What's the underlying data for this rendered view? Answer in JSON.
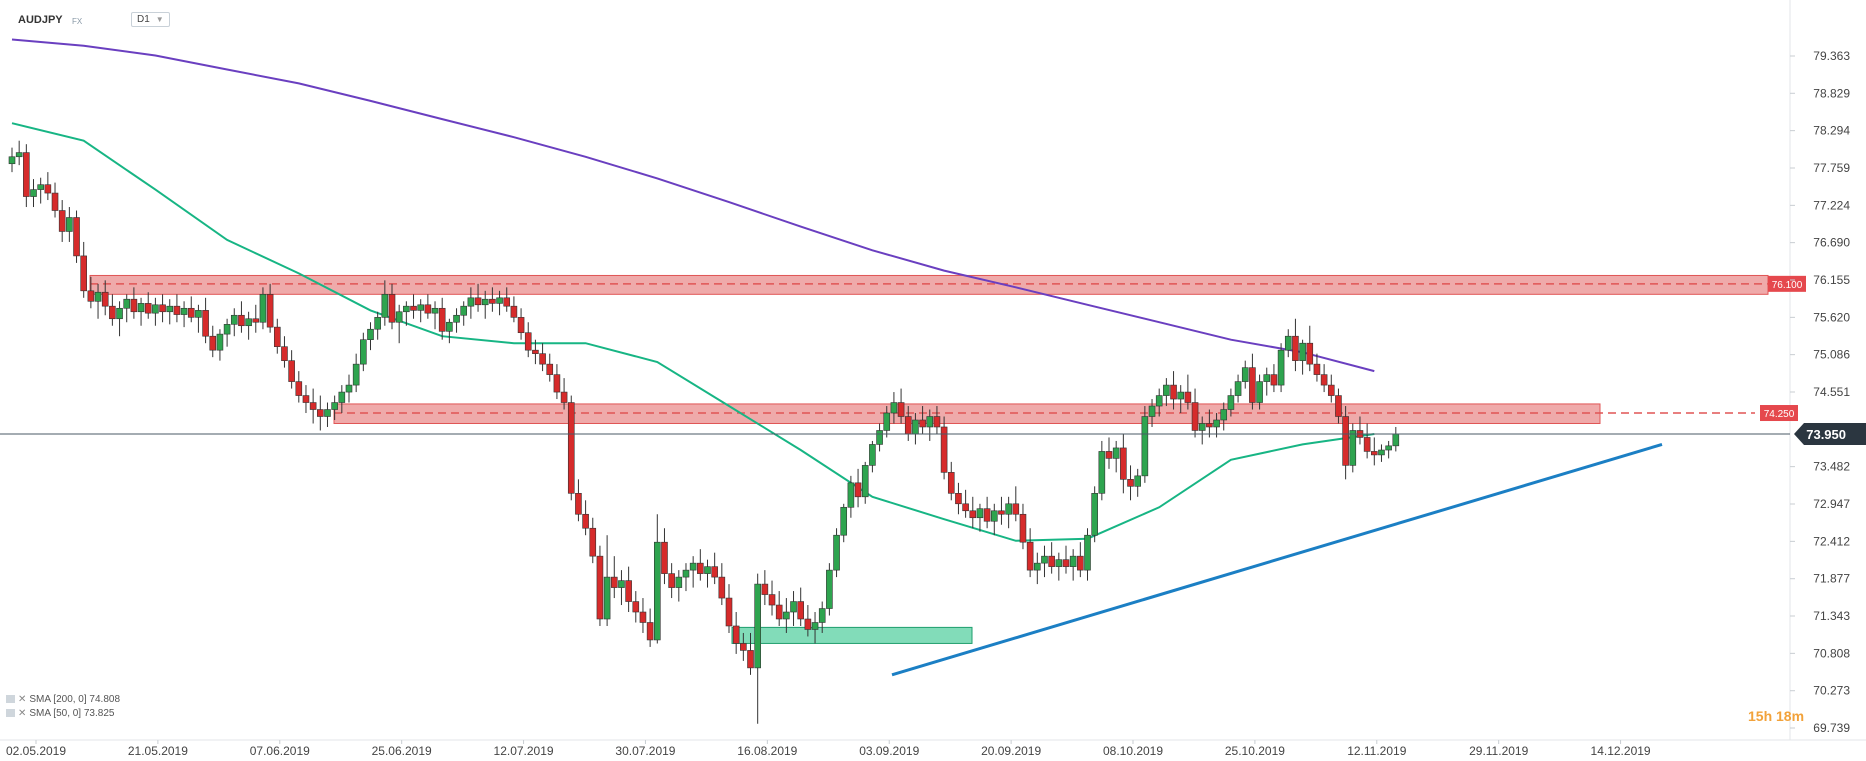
{
  "header": {
    "symbol": "AUDJPY",
    "market": "FX",
    "timeframe": "D1"
  },
  "indicators": [
    {
      "label": "SMA [200, 0] 74.808",
      "color": "#6a3fc0"
    },
    {
      "label": "SMA [50, 0] 73.825",
      "color": "#17b584"
    }
  ],
  "countdown": "15h 18m",
  "chart_data": {
    "type": "candlestick",
    "y_axis_ticks": [
      "79.363",
      "78.829",
      "78.294",
      "77.759",
      "77.224",
      "76.690",
      "76.155",
      "75.620",
      "75.086",
      "74.551",
      "73.482",
      "72.947",
      "72.412",
      "71.877",
      "71.343",
      "70.808",
      "70.273",
      "69.739"
    ],
    "ylim": [
      69.739,
      79.363
    ],
    "x_axis_ticks": [
      "02.05.2019",
      "21.05.2019",
      "07.06.2019",
      "25.06.2019",
      "12.07.2019",
      "30.07.2019",
      "16.08.2019",
      "03.09.2019",
      "20.09.2019",
      "08.10.2019",
      "25.10.2019",
      "12.11.2019",
      "29.11.2019",
      "14.12.2019"
    ],
    "current_price": {
      "value": 73.95,
      "label": "73.950"
    },
    "resistance_zones": [
      {
        "low": 75.95,
        "high": 76.22,
        "level": 76.1,
        "label": "76.100",
        "color": "#e05555"
      },
      {
        "low": 74.1,
        "high": 74.38,
        "level": 74.25,
        "label": "74.250",
        "color": "#e05555"
      }
    ],
    "support_zone": {
      "low": 70.95,
      "high": 71.18,
      "color": "#2fc48a"
    },
    "trendline": {
      "from": {
        "date": "21.08.2019",
        "price": 70.5
      },
      "to": {
        "date": "02.12.2019",
        "price": 73.8
      },
      "color": "#1b7fc4"
    },
    "sma200": [
      [
        0,
        79.6
      ],
      [
        10,
        79.51
      ],
      [
        20,
        79.37
      ],
      [
        30,
        79.17
      ],
      [
        40,
        78.97
      ],
      [
        50,
        78.72
      ],
      [
        60,
        78.46
      ],
      [
        70,
        78.2
      ],
      [
        80,
        77.92
      ],
      [
        90,
        77.61
      ],
      [
        100,
        77.27
      ],
      [
        110,
        76.92
      ],
      [
        120,
        76.58
      ],
      [
        130,
        76.29
      ],
      [
        140,
        76.05
      ],
      [
        150,
        75.8
      ],
      [
        160,
        75.55
      ],
      [
        170,
        75.3
      ],
      [
        180,
        75.12
      ],
      [
        190,
        74.85
      ]
    ],
    "sma50": [
      [
        0,
        78.4
      ],
      [
        10,
        78.15
      ],
      [
        20,
        77.45
      ],
      [
        30,
        76.73
      ],
      [
        40,
        76.25
      ],
      [
        50,
        75.72
      ],
      [
        60,
        75.35
      ],
      [
        70,
        75.25
      ],
      [
        80,
        75.25
      ],
      [
        90,
        74.98
      ],
      [
        100,
        74.35
      ],
      [
        110,
        73.72
      ],
      [
        120,
        73.05
      ],
      [
        130,
        72.73
      ],
      [
        140,
        72.42
      ],
      [
        150,
        72.45
      ],
      [
        160,
        72.9
      ],
      [
        170,
        73.58
      ],
      [
        180,
        73.8
      ],
      [
        190,
        73.95
      ]
    ],
    "candles": [
      [
        77.82,
        78.05,
        77.7,
        77.92
      ],
      [
        77.92,
        78.15,
        77.8,
        77.98
      ],
      [
        77.98,
        78.1,
        77.2,
        77.35
      ],
      [
        77.35,
        77.6,
        77.2,
        77.45
      ],
      [
        77.45,
        77.62,
        77.25,
        77.52
      ],
      [
        77.52,
        77.7,
        77.3,
        77.4
      ],
      [
        77.4,
        77.55,
        77.05,
        77.15
      ],
      [
        77.15,
        77.3,
        76.7,
        76.85
      ],
      [
        76.85,
        77.2,
        76.7,
        77.05
      ],
      [
        77.05,
        77.15,
        76.4,
        76.5
      ],
      [
        76.5,
        76.7,
        75.9,
        76.0
      ],
      [
        76.0,
        76.2,
        75.75,
        75.85
      ],
      [
        75.85,
        76.1,
        75.6,
        75.98
      ],
      [
        75.98,
        76.15,
        75.65,
        75.78
      ],
      [
        75.78,
        75.95,
        75.5,
        75.6
      ],
      [
        75.6,
        75.85,
        75.35,
        75.75
      ],
      [
        75.75,
        75.95,
        75.55,
        75.88
      ],
      [
        75.88,
        76.05,
        75.6,
        75.7
      ],
      [
        75.7,
        75.9,
        75.5,
        75.82
      ],
      [
        75.82,
        75.98,
        75.6,
        75.68
      ],
      [
        75.68,
        75.9,
        75.5,
        75.8
      ],
      [
        75.8,
        75.95,
        75.55,
        75.7
      ],
      [
        75.7,
        75.88,
        75.52,
        75.78
      ],
      [
        75.78,
        75.95,
        75.55,
        75.66
      ],
      [
        75.66,
        75.85,
        75.48,
        75.75
      ],
      [
        75.75,
        75.92,
        75.55,
        75.62
      ],
      [
        75.62,
        75.8,
        75.4,
        75.72
      ],
      [
        75.72,
        75.9,
        75.25,
        75.35
      ],
      [
        75.35,
        75.5,
        75.05,
        75.15
      ],
      [
        75.15,
        75.45,
        75.0,
        75.38
      ],
      [
        75.38,
        75.6,
        75.2,
        75.52
      ],
      [
        75.52,
        75.75,
        75.35,
        75.65
      ],
      [
        75.65,
        75.85,
        75.4,
        75.5
      ],
      [
        75.5,
        75.7,
        75.3,
        75.6
      ],
      [
        75.6,
        75.8,
        75.4,
        75.55
      ],
      [
        75.55,
        76.05,
        75.45,
        75.95
      ],
      [
        75.95,
        76.1,
        75.4,
        75.48
      ],
      [
        75.48,
        75.6,
        75.1,
        75.2
      ],
      [
        75.2,
        75.35,
        74.9,
        75.0
      ],
      [
        75.0,
        75.15,
        74.6,
        74.7
      ],
      [
        74.7,
        74.85,
        74.4,
        74.5
      ],
      [
        74.5,
        74.65,
        74.25,
        74.4
      ],
      [
        74.4,
        74.6,
        74.1,
        74.3
      ],
      [
        74.3,
        74.5,
        74.0,
        74.2
      ],
      [
        74.2,
        74.4,
        74.05,
        74.3
      ],
      [
        74.3,
        74.5,
        74.15,
        74.4
      ],
      [
        74.4,
        74.65,
        74.25,
        74.55
      ],
      [
        74.55,
        74.8,
        74.4,
        74.65
      ],
      [
        74.65,
        75.1,
        74.55,
        74.95
      ],
      [
        74.95,
        75.4,
        74.85,
        75.3
      ],
      [
        75.3,
        75.55,
        75.15,
        75.45
      ],
      [
        75.45,
        75.7,
        75.3,
        75.62
      ],
      [
        75.62,
        76.15,
        75.5,
        75.95
      ],
      [
        75.95,
        76.1,
        75.45,
        75.55
      ],
      [
        75.55,
        75.8,
        75.25,
        75.7
      ],
      [
        75.7,
        75.85,
        75.5,
        75.78
      ],
      [
        75.78,
        75.95,
        75.6,
        75.72
      ],
      [
        75.72,
        75.88,
        75.55,
        75.8
      ],
      [
        75.8,
        75.95,
        75.6,
        75.68
      ],
      [
        75.68,
        75.85,
        75.45,
        75.75
      ],
      [
        75.75,
        75.9,
        75.3,
        75.42
      ],
      [
        75.42,
        75.6,
        75.25,
        75.55
      ],
      [
        75.55,
        75.75,
        75.4,
        75.65
      ],
      [
        75.65,
        75.85,
        75.5,
        75.78
      ],
      [
        75.78,
        76.05,
        75.6,
        75.9
      ],
      [
        75.9,
        76.1,
        75.7,
        75.8
      ],
      [
        75.8,
        76.0,
        75.6,
        75.88
      ],
      [
        75.88,
        76.05,
        75.7,
        75.82
      ],
      [
        75.82,
        76.0,
        75.65,
        75.9
      ],
      [
        75.9,
        76.05,
        75.7,
        75.78
      ],
      [
        75.78,
        75.92,
        75.55,
        75.62
      ],
      [
        75.62,
        75.75,
        75.3,
        75.4
      ],
      [
        75.4,
        75.55,
        75.05,
        75.15
      ],
      [
        75.15,
        75.3,
        74.95,
        75.1
      ],
      [
        75.1,
        75.25,
        74.85,
        74.95
      ],
      [
        74.95,
        75.1,
        74.7,
        74.8
      ],
      [
        74.8,
        74.95,
        74.45,
        74.55
      ],
      [
        74.55,
        74.75,
        74.3,
        74.4
      ],
      [
        74.4,
        74.5,
        73.0,
        73.1
      ],
      [
        73.1,
        73.3,
        72.7,
        72.8
      ],
      [
        72.8,
        73.0,
        72.5,
        72.6
      ],
      [
        72.6,
        72.75,
        72.1,
        72.2
      ],
      [
        72.2,
        72.35,
        71.2,
        71.3
      ],
      [
        71.3,
        72.5,
        71.2,
        71.9
      ],
      [
        71.9,
        72.2,
        71.6,
        71.75
      ],
      [
        71.75,
        72.0,
        71.5,
        71.85
      ],
      [
        71.85,
        72.05,
        71.4,
        71.55
      ],
      [
        71.55,
        71.7,
        71.25,
        71.4
      ],
      [
        71.4,
        71.6,
        71.1,
        71.25
      ],
      [
        71.25,
        71.45,
        70.9,
        71.0
      ],
      [
        71.0,
        72.8,
        70.95,
        72.4
      ],
      [
        72.4,
        72.6,
        71.8,
        71.95
      ],
      [
        71.95,
        72.1,
        71.6,
        71.75
      ],
      [
        71.75,
        72.0,
        71.55,
        71.9
      ],
      [
        71.9,
        72.1,
        71.7,
        72.0
      ],
      [
        72.0,
        72.2,
        71.75,
        72.1
      ],
      [
        72.1,
        72.3,
        71.85,
        71.95
      ],
      [
        71.95,
        72.15,
        71.75,
        72.05
      ],
      [
        72.05,
        72.25,
        71.8,
        71.9
      ],
      [
        71.9,
        72.1,
        71.5,
        71.6
      ],
      [
        71.6,
        71.8,
        71.1,
        71.2
      ],
      [
        71.2,
        71.4,
        70.8,
        70.95
      ],
      [
        70.95,
        71.1,
        70.7,
        70.85
      ],
      [
        70.85,
        71.1,
        70.5,
        70.6
      ],
      [
        70.6,
        71.95,
        69.8,
        71.8
      ],
      [
        71.8,
        72.0,
        71.5,
        71.65
      ],
      [
        71.65,
        71.85,
        71.35,
        71.5
      ],
      [
        71.5,
        71.7,
        71.2,
        71.3
      ],
      [
        71.3,
        71.6,
        71.1,
        71.4
      ],
      [
        71.4,
        71.7,
        71.2,
        71.55
      ],
      [
        71.55,
        71.75,
        71.2,
        71.3
      ],
      [
        71.3,
        71.5,
        71.05,
        71.15
      ],
      [
        71.15,
        71.4,
        70.95,
        71.25
      ],
      [
        71.25,
        71.55,
        71.1,
        71.45
      ],
      [
        71.45,
        72.1,
        71.35,
        72.0
      ],
      [
        72.0,
        72.6,
        71.9,
        72.5
      ],
      [
        72.5,
        72.95,
        72.4,
        72.9
      ],
      [
        72.9,
        73.35,
        72.75,
        73.25
      ],
      [
        73.25,
        73.45,
        72.9,
        73.05
      ],
      [
        73.05,
        73.55,
        72.95,
        73.5
      ],
      [
        73.5,
        73.85,
        73.4,
        73.8
      ],
      [
        73.8,
        74.1,
        73.7,
        74.0
      ],
      [
        74.0,
        74.35,
        73.9,
        74.25
      ],
      [
        74.25,
        74.55,
        74.1,
        74.4
      ],
      [
        74.4,
        74.6,
        74.1,
        74.2
      ],
      [
        74.2,
        74.35,
        73.85,
        73.95
      ],
      [
        73.95,
        74.25,
        73.8,
        74.15
      ],
      [
        74.15,
        74.35,
        73.95,
        74.05
      ],
      [
        74.05,
        74.3,
        73.85,
        74.2
      ],
      [
        74.2,
        74.35,
        73.95,
        74.05
      ],
      [
        74.05,
        74.2,
        73.3,
        73.4
      ],
      [
        73.4,
        73.55,
        73.0,
        73.1
      ],
      [
        73.1,
        73.25,
        72.8,
        72.95
      ],
      [
        72.95,
        73.15,
        72.75,
        72.85
      ],
      [
        72.85,
        73.05,
        72.6,
        72.75
      ],
      [
        72.75,
        72.95,
        72.55,
        72.88
      ],
      [
        72.88,
        73.05,
        72.6,
        72.7
      ],
      [
        72.7,
        72.95,
        72.5,
        72.85
      ],
      [
        72.85,
        73.05,
        72.65,
        72.8
      ],
      [
        72.8,
        73.05,
        72.6,
        72.95
      ],
      [
        72.95,
        73.2,
        72.7,
        72.8
      ],
      [
        72.8,
        72.95,
        72.3,
        72.4
      ],
      [
        72.4,
        72.6,
        71.9,
        72.0
      ],
      [
        72.0,
        72.25,
        71.8,
        72.1
      ],
      [
        72.1,
        72.35,
        71.9,
        72.2
      ],
      [
        72.2,
        72.4,
        71.95,
        72.05
      ],
      [
        72.05,
        72.25,
        71.85,
        72.15
      ],
      [
        72.15,
        72.35,
        71.95,
        72.05
      ],
      [
        72.05,
        72.3,
        71.85,
        72.2
      ],
      [
        72.2,
        72.4,
        71.9,
        72.0
      ],
      [
        72.0,
        72.6,
        71.85,
        72.5
      ],
      [
        72.5,
        73.2,
        72.4,
        73.1
      ],
      [
        73.1,
        73.85,
        73.0,
        73.7
      ],
      [
        73.7,
        73.9,
        73.45,
        73.6
      ],
      [
        73.6,
        73.85,
        73.4,
        73.75
      ],
      [
        73.75,
        73.95,
        73.1,
        73.3
      ],
      [
        73.3,
        73.5,
        73.0,
        73.2
      ],
      [
        73.2,
        73.45,
        73.05,
        73.35
      ],
      [
        73.35,
        74.35,
        73.25,
        74.2
      ],
      [
        74.2,
        74.45,
        74.05,
        74.35
      ],
      [
        74.35,
        74.6,
        74.2,
        74.5
      ],
      [
        74.5,
        74.75,
        74.35,
        74.65
      ],
      [
        74.65,
        74.85,
        74.3,
        74.45
      ],
      [
        74.45,
        74.65,
        74.25,
        74.55
      ],
      [
        74.55,
        74.8,
        74.3,
        74.4
      ],
      [
        74.4,
        74.6,
        73.9,
        74.0
      ],
      [
        74.0,
        74.2,
        73.8,
        74.1
      ],
      [
        74.1,
        74.3,
        73.9,
        74.05
      ],
      [
        74.05,
        74.25,
        73.9,
        74.15
      ],
      [
        74.15,
        74.4,
        74.0,
        74.3
      ],
      [
        74.3,
        74.6,
        74.2,
        74.5
      ],
      [
        74.5,
        74.8,
        74.4,
        74.7
      ],
      [
        74.7,
        75.0,
        74.6,
        74.9
      ],
      [
        74.9,
        75.1,
        74.3,
        74.4
      ],
      [
        74.4,
        74.8,
        74.3,
        74.7
      ],
      [
        74.7,
        74.9,
        74.5,
        74.8
      ],
      [
        74.8,
        74.95,
        74.55,
        74.65
      ],
      [
        74.65,
        75.25,
        74.55,
        75.15
      ],
      [
        75.15,
        75.45,
        75.05,
        75.35
      ],
      [
        75.35,
        75.6,
        74.85,
        75.0
      ],
      [
        75.0,
        75.3,
        74.8,
        75.25
      ],
      [
        75.25,
        75.5,
        74.85,
        74.95
      ],
      [
        74.95,
        75.1,
        74.7,
        74.8
      ],
      [
        74.8,
        74.95,
        74.55,
        74.65
      ],
      [
        74.65,
        74.8,
        74.4,
        74.5
      ],
      [
        74.5,
        74.6,
        74.1,
        74.2
      ],
      [
        74.2,
        74.35,
        73.3,
        73.5
      ],
      [
        73.5,
        74.1,
        73.4,
        74.0
      ],
      [
        74.0,
        74.2,
        73.8,
        73.9
      ],
      [
        73.9,
        74.1,
        73.6,
        73.7
      ],
      [
        73.7,
        73.9,
        73.5,
        73.65
      ],
      [
        73.65,
        73.8,
        73.55,
        73.72
      ],
      [
        73.72,
        73.85,
        73.6,
        73.78
      ],
      [
        73.78,
        74.05,
        73.7,
        73.95
      ]
    ]
  }
}
